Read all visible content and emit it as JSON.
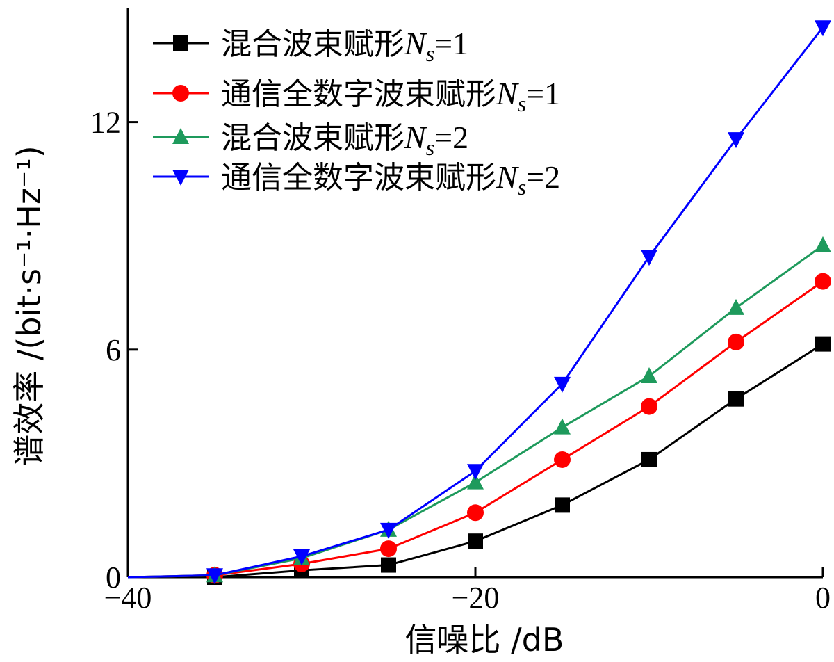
{
  "chart_data": {
    "type": "line",
    "title": "",
    "xlabel": "信噪比 /dB",
    "ylabel": "谱效率 /(bit·s⁻¹·Hz⁻¹)",
    "xlim": [
      -40,
      0
    ],
    "ylim": [
      0,
      15
    ],
    "xticks": [
      -40,
      -20,
      0
    ],
    "yticks": [
      0,
      6,
      12
    ],
    "legend_position": "top-left",
    "grid": false,
    "x": [
      -35,
      -30,
      -25,
      -20,
      -15,
      -10,
      -5,
      0
    ],
    "series": [
      {
        "name": "混合波束赋形",
        "math_var": "N",
        "math_sub": "s",
        "math_eq": "=1",
        "color": "#000000",
        "marker": "square",
        "values": [
          0.0,
          0.18,
          0.32,
          0.95,
          1.9,
          3.1,
          4.7,
          6.15
        ]
      },
      {
        "name": "通信全数字波束赋形",
        "math_var": "N",
        "math_sub": "s",
        "math_eq": "=1",
        "color": "#ff0000",
        "marker": "circle",
        "values": [
          0.05,
          0.35,
          0.75,
          1.7,
          3.1,
          4.5,
          6.2,
          7.8
        ]
      },
      {
        "name": "混合波束赋形",
        "math_var": "N",
        "math_sub": "s",
        "math_eq": "=2",
        "color": "#1e9a5c",
        "marker": "triangle-up",
        "values": [
          0.05,
          0.5,
          1.25,
          2.5,
          3.95,
          5.3,
          7.1,
          8.75
        ]
      },
      {
        "name": "通信全数字波束赋形",
        "math_var": "N",
        "math_sub": "s",
        "math_eq": "=2",
        "color": "#0000ff",
        "marker": "triangle-down",
        "values": [
          0.05,
          0.55,
          1.25,
          2.8,
          5.1,
          8.45,
          11.55,
          14.5
        ]
      }
    ]
  }
}
